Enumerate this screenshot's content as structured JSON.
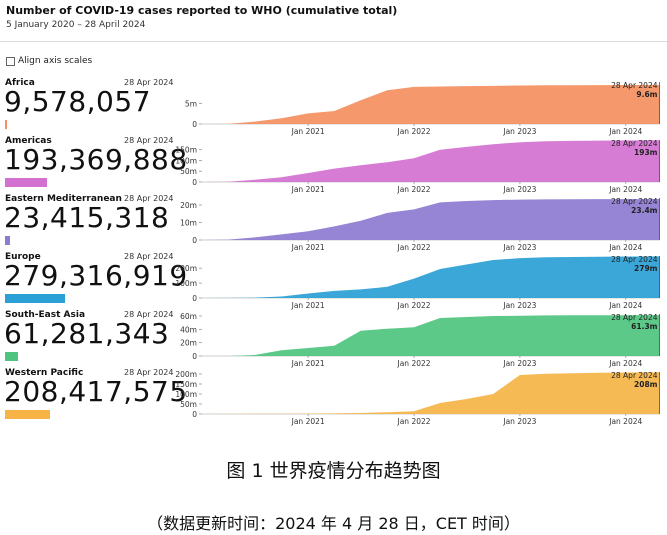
{
  "header": {
    "title": "Number of COVID-19 cases reported to WHO (cumulative total)",
    "subtitle": "5 January 2020 – 28 April 2024",
    "align_label": "Align axis scales"
  },
  "caption": {
    "line1": "图 1  世界疫情分布趋势图",
    "line2": "（数据更新时间：2024 年 4 月 28 日，CET 时间）"
  },
  "chart_data": [
    {
      "type": "area",
      "title": "Africa",
      "as_of": "28 Apr 2024",
      "total": "9,578,057",
      "end_label": "9.6m",
      "color": "#f4905f",
      "bar_fraction": 0.0343,
      "yticks": [
        "0",
        "5m"
      ],
      "ytick_values": [
        0,
        5
      ],
      "ymax": 10.3,
      "xticks": [
        "Jan 2021",
        "Jan 2022",
        "Jan 2023",
        "Jan 2024"
      ],
      "x": [
        "2020-01",
        "2020-04",
        "2020-07",
        "2020-10",
        "2021-01",
        "2021-04",
        "2021-07",
        "2021-10",
        "2022-01",
        "2022-04",
        "2022-07",
        "2022-10",
        "2023-01",
        "2023-04",
        "2023-07",
        "2023-10",
        "2024-01",
        "2024-04"
      ],
      "y": [
        0,
        0.02,
        0.6,
        1.4,
        2.6,
        3.2,
        5.8,
        8.3,
        9.1,
        9.2,
        9.3,
        9.35,
        9.45,
        9.5,
        9.52,
        9.55,
        9.57,
        9.58
      ],
      "unit": "million"
    },
    {
      "type": "area",
      "title": "Americas",
      "as_of": "28 Apr 2024",
      "total": "193,369,888",
      "end_label": "193m",
      "color": "#d371d0",
      "bar_fraction": 0.692,
      "yticks": [
        "0",
        "50m",
        "100m",
        "150m"
      ],
      "ytick_values": [
        0,
        50,
        100,
        150
      ],
      "ymax": 195,
      "xticks": [
        "Jan 2021",
        "Jan 2022",
        "Jan 2023",
        "Jan 2024"
      ],
      "x": [
        "2020-01",
        "2020-04",
        "2020-07",
        "2020-10",
        "2021-01",
        "2021-04",
        "2021-07",
        "2021-10",
        "2022-01",
        "2022-04",
        "2022-07",
        "2022-10",
        "2023-01",
        "2023-04",
        "2023-07",
        "2023-10",
        "2024-01",
        "2024-04"
      ],
      "y": [
        0,
        1,
        10,
        22,
        42,
        62,
        78,
        92,
        110,
        150,
        163,
        175,
        185,
        189,
        191,
        192,
        193,
        193.4
      ],
      "unit": "million"
    },
    {
      "type": "area",
      "title": "Eastern Mediterranean",
      "as_of": "28 Apr 2024",
      "total": "23,415,318",
      "end_label": "23.4m",
      "color": "#8c7bd0",
      "bar_fraction": 0.0838,
      "yticks": [
        "0",
        "10m",
        "20m"
      ],
      "ytick_values": [
        0,
        10,
        20
      ],
      "ymax": 24,
      "xticks": [
        "Jan 2021",
        "Jan 2022",
        "Jan 2023",
        "Jan 2024"
      ],
      "x": [
        "2020-01",
        "2020-04",
        "2020-07",
        "2020-10",
        "2021-01",
        "2021-04",
        "2021-07",
        "2021-10",
        "2022-01",
        "2022-04",
        "2022-07",
        "2022-10",
        "2023-01",
        "2023-04",
        "2023-07",
        "2023-10",
        "2024-01",
        "2024-04"
      ],
      "y": [
        0,
        0.2,
        1.5,
        3.2,
        5.0,
        7.8,
        11.0,
        15.5,
        17.5,
        21.5,
        22.3,
        22.8,
        23.1,
        23.2,
        23.3,
        23.35,
        23.4,
        23.42
      ],
      "unit": "million"
    },
    {
      "type": "area",
      "title": "Europe",
      "as_of": "28 Apr 2024",
      "total": "279,316,919",
      "end_label": "279m",
      "color": "#2aa0d6",
      "bar_fraction": 1.0,
      "yticks": [
        "0",
        "100m",
        "200m"
      ],
      "ytick_values": [
        0,
        100,
        200
      ],
      "ymax": 282,
      "xticks": [
        "Jan 2021",
        "Jan 2022",
        "Jan 2023",
        "Jan 2024"
      ],
      "x": [
        "2020-01",
        "2020-04",
        "2020-07",
        "2020-10",
        "2021-01",
        "2021-04",
        "2021-07",
        "2021-10",
        "2022-01",
        "2022-04",
        "2022-07",
        "2022-10",
        "2023-01",
        "2023-04",
        "2023-07",
        "2023-10",
        "2024-01",
        "2024-04"
      ],
      "y": [
        0,
        1,
        3,
        10,
        30,
        48,
        58,
        75,
        130,
        195,
        225,
        255,
        268,
        273,
        275,
        277,
        278.5,
        279.3
      ],
      "unit": "million"
    },
    {
      "type": "area",
      "title": "South-East Asia",
      "as_of": "28 Apr 2024",
      "total": "61,281,343",
      "end_label": "61.3m",
      "color": "#4fc47e",
      "bar_fraction": 0.2194,
      "yticks": [
        "0",
        "20m",
        "40m",
        "60m"
      ],
      "ytick_values": [
        0,
        20,
        40,
        60
      ],
      "ymax": 63,
      "xticks": [
        "Jan 2021",
        "Jan 2022",
        "Jan 2023",
        "Jan 2024"
      ],
      "x": [
        "2020-01",
        "2020-04",
        "2020-07",
        "2020-10",
        "2021-01",
        "2021-04",
        "2021-07",
        "2021-10",
        "2022-01",
        "2022-04",
        "2022-07",
        "2022-10",
        "2023-01",
        "2023-04",
        "2023-07",
        "2023-10",
        "2024-01",
        "2024-04"
      ],
      "y": [
        0,
        0.05,
        1.5,
        8.5,
        12.0,
        15.5,
        38.0,
        41.0,
        43.0,
        57.0,
        58.5,
        60.0,
        60.5,
        60.9,
        61.0,
        61.1,
        61.2,
        61.28
      ],
      "unit": "million"
    },
    {
      "type": "area",
      "title": "Western Pacific",
      "as_of": "28 Apr 2024",
      "total": "208,417,575",
      "end_label": "208m",
      "color": "#f5b445",
      "bar_fraction": 0.7462,
      "yticks": [
        "0",
        "50m",
        "100m",
        "150m",
        "200m"
      ],
      "ytick_values": [
        0,
        50,
        100,
        150,
        200
      ],
      "ymax": 210,
      "xticks": [
        "Jan 2021",
        "Jan 2022",
        "Jan 2023",
        "Jan 2024"
      ],
      "x": [
        "2020-01",
        "2020-04",
        "2020-07",
        "2020-10",
        "2021-01",
        "2021-04",
        "2021-07",
        "2021-10",
        "2022-01",
        "2022-04",
        "2022-07",
        "2022-10",
        "2023-01",
        "2023-04",
        "2023-07",
        "2023-10",
        "2024-01",
        "2024-04"
      ],
      "y": [
        0,
        0.3,
        0.8,
        1.5,
        2.0,
        3.0,
        5.0,
        9.0,
        14.0,
        55.0,
        75.0,
        100.0,
        195.0,
        201.0,
        204.0,
        206.0,
        207.5,
        208.4
      ],
      "unit": "million"
    }
  ]
}
